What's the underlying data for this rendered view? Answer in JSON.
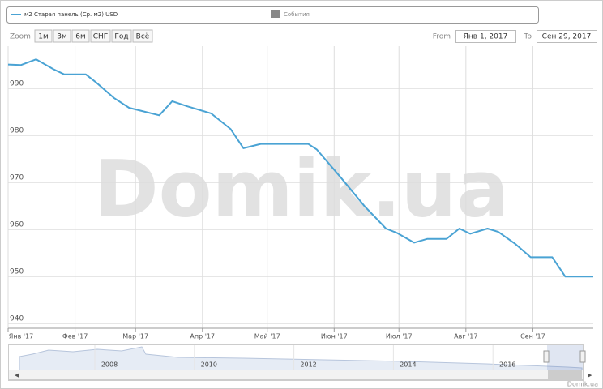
{
  "chart_data": {
    "type": "line",
    "x": [
      "2017-01-01",
      "2017-01-07",
      "2017-01-14",
      "2017-01-22",
      "2017-01-27",
      "2017-02-06",
      "2017-02-11",
      "2017-02-19",
      "2017-02-26",
      "2017-03-04",
      "2017-03-12",
      "2017-03-18",
      "2017-03-25",
      "2017-04-05",
      "2017-04-14",
      "2017-04-20",
      "2017-04-28",
      "2017-05-20",
      "2017-05-24",
      "2017-06-04",
      "2017-06-15",
      "2017-06-25",
      "2017-06-30",
      "2017-07-08",
      "2017-07-14",
      "2017-07-23",
      "2017-07-29",
      "2017-08-03",
      "2017-08-11",
      "2017-08-16",
      "2017-08-24",
      "2017-08-31",
      "2017-09-10",
      "2017-09-16",
      "2017-09-29"
    ],
    "series": [
      {
        "name": "м2 Старая панель (Ср. м2) USD",
        "color": "#4aa3d4",
        "values": [
          995.1,
          995,
          996.2,
          994.1,
          993,
          993,
          991.2,
          988,
          985.9,
          985.2,
          984.3,
          987.3,
          986.2,
          984.7,
          981.4,
          977.3,
          978.2,
          978.2,
          977,
          971.1,
          965,
          960.2,
          959.3,
          957.2,
          958,
          958,
          960.2,
          959.1,
          960.2,
          959.5,
          956.9,
          954.1,
          954.1,
          950,
          950
        ]
      }
    ],
    "xlim": [
      "2017-01-01",
      "2017-09-29"
    ],
    "xticks": [
      {
        "value": "2017-01-01",
        "label": "Янв '17"
      },
      {
        "value": "2017-02-01",
        "label": "Фев '17"
      },
      {
        "value": "2017-03-01",
        "label": "Мар '17"
      },
      {
        "value": "2017-04-01",
        "label": "Апр '17"
      },
      {
        "value": "2017-05-01",
        "label": "Май '17"
      },
      {
        "value": "2017-06-01",
        "label": "Июн '17"
      },
      {
        "value": "2017-07-01",
        "label": "Июл '17"
      },
      {
        "value": "2017-08-01",
        "label": "Авг '17"
      },
      {
        "value": "2017-09-01",
        "label": "Сен '17"
      }
    ],
    "ylim": [
      939,
      999
    ],
    "yticks": [
      940,
      950,
      960,
      970,
      980,
      990
    ],
    "grid": true,
    "events_legend": {
      "name": "События",
      "color": "#888888"
    }
  },
  "range_selector": {
    "zoom_label": "Zoom",
    "buttons": [
      "1м",
      "3м",
      "6м",
      "СНГ",
      "Год",
      "Всё"
    ],
    "from_label": "From",
    "from": "Янв 1, 2017",
    "to_label": "To",
    "to": "Сен 29, 2017"
  },
  "navigator": {
    "labels": [
      "2008",
      "2010",
      "2012",
      "2014",
      "2016"
    ]
  },
  "watermark": "Domik.ua",
  "credits": "Domik.ua"
}
